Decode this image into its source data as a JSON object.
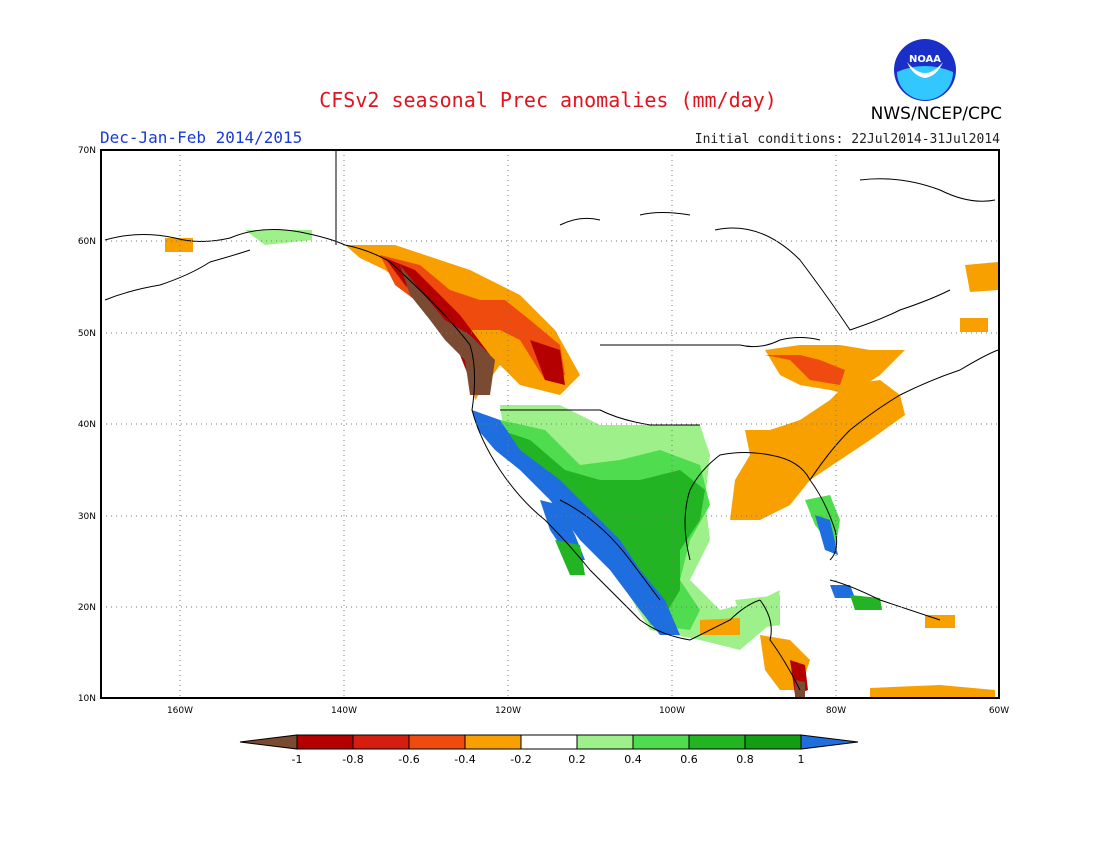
{
  "header": {
    "title": "CFSv2 seasonal Prec anomalies (mm/day)",
    "season": "Dec-Jan-Feb 2014/2015",
    "initial_conditions": "Initial conditions: 22Jul2014-31Jul2014",
    "org": "NWS/NCEP/CPC",
    "logo_text": "NOAA"
  },
  "axes": {
    "lat_labels": [
      "70N",
      "60N",
      "50N",
      "40N",
      "30N",
      "20N",
      "10N"
    ],
    "lon_labels": [
      "160W",
      "140W",
      "120W",
      "100W",
      "80W",
      "60W"
    ]
  },
  "colorbar": {
    "labels": [
      "-1",
      "-0.8",
      "-0.6",
      "-0.4",
      "-0.2",
      "0.2",
      "0.4",
      "0.6",
      "0.8",
      "1"
    ],
    "colors": {
      "lt_m1": "#7a4a32",
      "m1_m08": "#b40000",
      "m08_m06": "#d61e10",
      "m06_m04": "#f04b0f",
      "m04_m02": "#f7a000",
      "m02_02": "#ffffff",
      "p02_04": "#9ef08a",
      "p04_06": "#4fdc4f",
      "p06_08": "#22b422",
      "p08_1": "#139d13",
      "gt_1": "#1e6ee0"
    }
  }
}
